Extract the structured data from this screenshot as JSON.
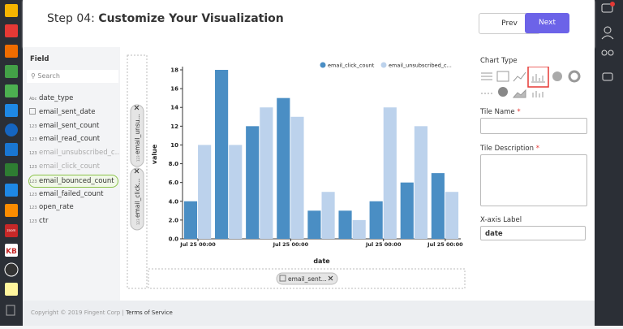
{
  "app_labels": [
    "zoom",
    "KB"
  ],
  "header": {
    "step": "Step 04:",
    "title": "Customize Your Visualization",
    "prev": "Prev",
    "next": "Next"
  },
  "fields": {
    "heading": "Field",
    "search_placeholder": "Search",
    "items": [
      {
        "type": "Abc",
        "name": "date_type"
      },
      {
        "name": "email_sent_date"
      },
      {
        "type": "123",
        "name": "email_sent_count"
      },
      {
        "type": "123",
        "name": "email_read_count"
      },
      {
        "type": "123",
        "name": "email_unsubscribed_c...",
        "state": "muted"
      },
      {
        "type": "123",
        "name": "email_click_count",
        "state": "muted"
      },
      {
        "type": "123",
        "name": "email_bounced_count",
        "state": "selected"
      },
      {
        "type": "123",
        "name": "email_failed_count"
      },
      {
        "type": "123",
        "name": "open_rate"
      },
      {
        "type": "123",
        "name": "ctr"
      }
    ]
  },
  "y_drop": [
    {
      "type": "123",
      "name": "email_unsu..."
    },
    {
      "type": "123",
      "name": "email_click..."
    }
  ],
  "x_drop": {
    "name": "email_sent..."
  },
  "chart_data": {
    "type": "bar",
    "x_label": "date",
    "y_label": "value",
    "categories": [
      "Jul 25 00:00",
      null,
      null,
      "Jul 25 00:00",
      null,
      null,
      "Jul 25 00:00",
      null,
      "Jul 25 00:00"
    ],
    "series": [
      {
        "name": "email_click_count",
        "color": "#4a8ec4",
        "values": [
          4,
          18,
          12,
          15,
          3,
          3,
          4,
          6,
          7
        ]
      },
      {
        "name": "email_unsubscribed_c...",
        "color": "#bcd2ec",
        "values": [
          10,
          10,
          14,
          13,
          5,
          2,
          14,
          12,
          5
        ]
      }
    ],
    "ylim": [
      0,
      18
    ],
    "yticks": [
      {
        "value": 0,
        "label": "0.0"
      },
      {
        "value": 2,
        "label": "2.0"
      },
      {
        "value": 4,
        "label": "4.0"
      },
      {
        "value": 6,
        "label": "6.0"
      },
      {
        "value": 8,
        "label": "8.0"
      },
      10,
      12,
      14,
      16,
      18
    ],
    "grid": false,
    "legend": "top-right"
  },
  "config": {
    "chart_type_label": "Chart Type",
    "tile_name": {
      "label": "Tile Name",
      "mark": "*"
    },
    "tile_description": {
      "label": "Tile Description",
      "mark": "*"
    },
    "x_axis": {
      "label": "X-axis Label",
      "value": "date"
    }
  },
  "footer": {
    "copyright": "Copyright © 2019 Fingent Corp",
    "separator": "|",
    "link": "Terms of Service"
  }
}
